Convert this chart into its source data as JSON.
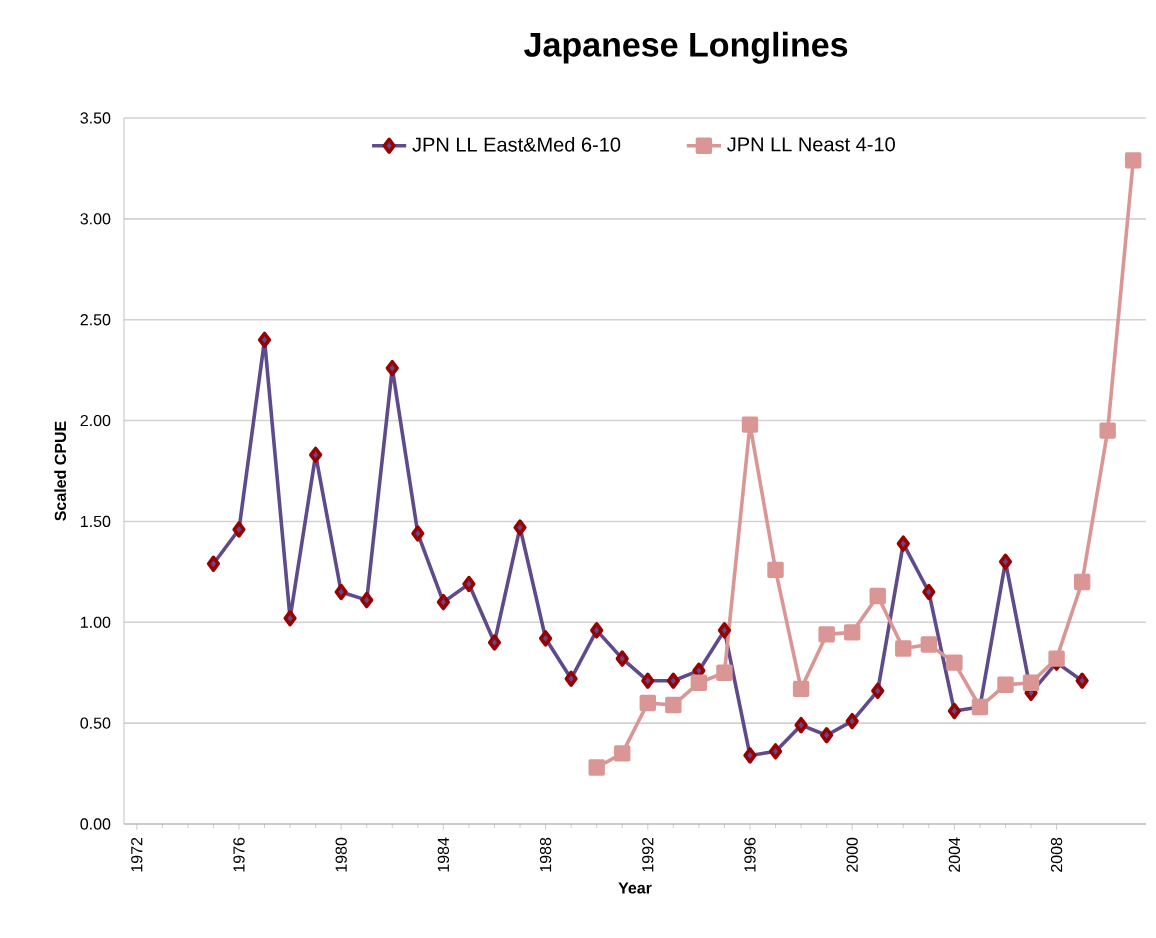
{
  "chart_data": {
    "type": "line",
    "title": "Japanese Longlines",
    "xlabel": "Year",
    "ylabel": "Scaled CPUE",
    "xlim": [
      1971.5,
      2011.5
    ],
    "xticks": [
      1972,
      1976,
      1980,
      1984,
      1988,
      1992,
      1996,
      2000,
      2004,
      2008
    ],
    "ylim": [
      0,
      3.5
    ],
    "yticks": [
      {
        "value": 0,
        "label": "0.00"
      },
      {
        "value": 0.5,
        "label": "0.50"
      },
      {
        "value": 1,
        "label": "1.00"
      },
      {
        "value": 1.5,
        "label": "1.50"
      },
      {
        "value": 2,
        "label": "2.00"
      },
      {
        "value": 2.5,
        "label": "2.50"
      },
      {
        "value": 3,
        "label": "3.00"
      },
      {
        "value": 3.5,
        "label": "3.50"
      }
    ],
    "grid": "y",
    "legend": "top",
    "series": [
      {
        "name": "JPN LL East&Med 6-10",
        "color": "#5f4b8b",
        "marker": "diamond",
        "x": [
          1975,
          1976,
          1977,
          1978,
          1979,
          1980,
          1981,
          1982,
          1983,
          1984,
          1985,
          1986,
          1987,
          1988,
          1989,
          1990,
          1991,
          1992,
          1993,
          1994,
          1995,
          1996,
          1997,
          1998,
          1999,
          2000,
          2001,
          2002,
          2003,
          2004,
          2005,
          2006,
          2007,
          2008,
          2009
        ],
        "values": [
          1.29,
          1.46,
          2.4,
          1.02,
          1.83,
          1.15,
          1.11,
          2.26,
          1.44,
          1.1,
          1.19,
          0.9,
          1.47,
          0.92,
          0.72,
          0.96,
          0.82,
          0.71,
          0.71,
          0.76,
          0.96,
          0.34,
          0.36,
          0.49,
          0.44,
          0.51,
          0.66,
          1.39,
          1.15,
          0.56,
          0.58,
          1.3,
          0.65,
          0.8,
          0.71
        ]
      },
      {
        "name": "JPN LL Neast 4-10",
        "color": "#d99694",
        "marker": "square",
        "x": [
          1990,
          1991,
          1992,
          1993,
          1994,
          1995,
          1996,
          1997,
          1998,
          1999,
          2000,
          2001,
          2002,
          2003,
          2004,
          2005,
          2006,
          2007,
          2008,
          2009,
          2010,
          2011
        ],
        "values": [
          0.28,
          0.35,
          0.6,
          0.59,
          0.7,
          0.75,
          1.98,
          1.26,
          0.67,
          0.94,
          0.95,
          1.13,
          0.87,
          0.89,
          0.8,
          0.58,
          0.69,
          0.7,
          0.82,
          1.2,
          1.95,
          3.29
        ]
      }
    ]
  }
}
